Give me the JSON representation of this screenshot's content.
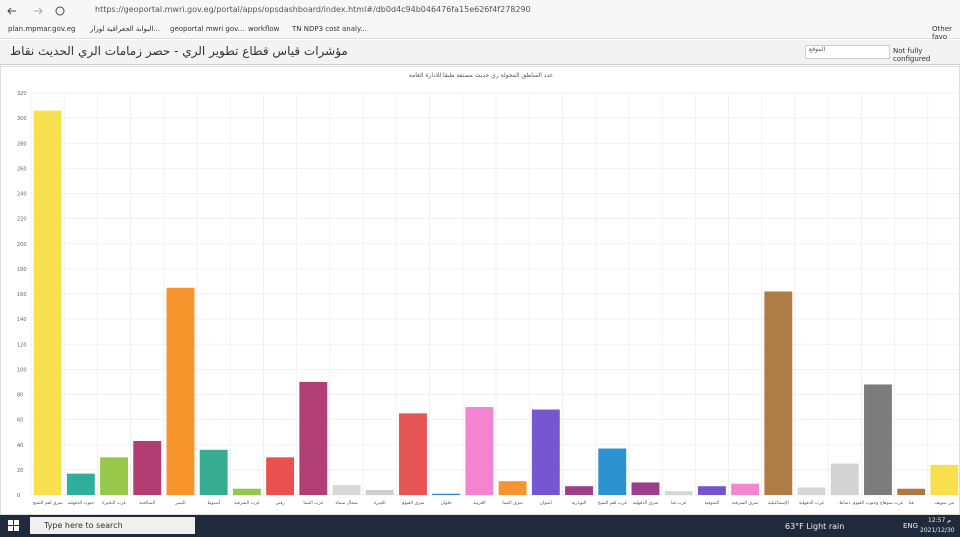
{
  "browser": {
    "url": "https://geoportal.mwri.gov.eg/portal/apps/opsdashboard/index.html#/db0d4c94b046476fa15e626f4f278290",
    "bookmarks": [
      "plan.mpmar.gov.eg",
      "البوابة الجغرافية لوزار...",
      "geoportal mwri gov...",
      "workflow",
      "TN NDP3 cost analy..."
    ],
    "other_bookmarks": "Other favo"
  },
  "dashboard": {
    "title": "مؤشرات قياس قطاع تطوير الري - حصر زمامات الري الحديث نقاط",
    "selector": "الموقع",
    "status": "Not fully configured"
  },
  "chart_data": {
    "type": "bar",
    "title": "عدد المناطق المحولة ري حديث مصنفة طبقا للادارة العامة",
    "categories": [
      "شرق لقم الشيخ",
      "جنوب الدقهلية",
      "غرب البحيرة",
      "الصالحية",
      "النصر",
      "أسيوط",
      "غرب الشرقية",
      "زفتى",
      "غرب المنيا",
      "شمال سيناء",
      "الجيزة",
      "شرق الفيوم",
      "حلوان",
      "الغربية",
      "شرق المنيا",
      "أسوان",
      "النوبارية",
      "غرب لقم الشيخ",
      "شرق الدقهلية",
      "غرب قنا",
      "المنوفية",
      "شرق الشرقية",
      "الإسماعيلية",
      "غرب الدقهلية",
      "دمياط",
      "غرب سوهاج وجنوب الفيوم",
      "قنا",
      "بني سويف"
    ],
    "values": [
      306,
      17,
      30,
      43,
      165,
      36,
      5,
      30,
      90,
      8,
      4,
      65,
      1,
      70,
      11,
      68,
      7,
      37,
      10,
      3,
      7,
      9,
      162,
      6,
      25,
      88,
      5,
      24
    ],
    "colors": [
      "#f9e04f",
      "#2fae9b",
      "#98c84a",
      "#b23d72",
      "#f7952c",
      "#36ad93",
      "#93c74e",
      "#ea5151",
      "#b13e75",
      "#d8d8d8",
      "#cfcfcf",
      "#e65454",
      "#2e86c9",
      "#f483d2",
      "#f5952f",
      "#7557d1",
      "#9b3f8a",
      "#2b93cf",
      "#9b3e8c",
      "#d6d6d6",
      "#7454cf",
      "#f286cf",
      "#b07c45",
      "#d7d7d7",
      "#d3d3d3",
      "#7c7c7c",
      "#ad7a45",
      "#f8df4d"
    ],
    "ylim": [
      0,
      320
    ],
    "yticks": [
      0,
      20,
      40,
      60,
      80,
      100,
      120,
      140,
      160,
      180,
      200,
      220,
      240,
      260,
      280,
      300,
      320
    ],
    "grid": true
  },
  "taskbar": {
    "search": "Type here to search",
    "weather": "63°F  Light rain",
    "language": "ENG",
    "time": "12:57 م",
    "date": "2021/12/30"
  }
}
